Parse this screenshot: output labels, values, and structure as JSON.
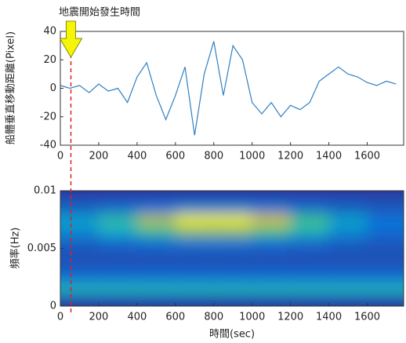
{
  "chart_data": [
    {
      "type": "line",
      "annotation": "地震開始發生時間",
      "event_time": 55,
      "ylabel": "船體垂直移動距離(Pixel)",
      "x": [
        0,
        50,
        100,
        150,
        200,
        250,
        300,
        350,
        400,
        450,
        500,
        550,
        600,
        650,
        700,
        750,
        800,
        850,
        900,
        950,
        1000,
        1050,
        1100,
        1150,
        1200,
        1250,
        1300,
        1350,
        1400,
        1450,
        1500,
        1550,
        1600,
        1650,
        1700,
        1750
      ],
      "series": [
        {
          "color": "#2f7fc1",
          "values": [
            2,
            0,
            2,
            -3,
            3,
            -2,
            0,
            -10,
            8,
            18,
            -5,
            -22,
            -5,
            15,
            -33,
            10,
            33,
            -5,
            30,
            20,
            -10,
            -18,
            -10,
            -20,
            -12,
            -15,
            -10,
            5,
            10,
            15,
            10,
            8,
            4,
            2,
            5,
            3
          ]
        }
      ],
      "xlim": [
        0,
        1790
      ],
      "xticks": [
        0,
        200,
        400,
        600,
        800,
        1000,
        1200,
        1400,
        1600
      ],
      "ylim": [
        -40,
        40
      ],
      "yticks": [
        -40,
        -20,
        0,
        20,
        40
      ]
    },
    {
      "type": "heatmap",
      "xlabel": "時間(sec)",
      "ylabel": "頻率(Hz)",
      "x": [
        100,
        300,
        500,
        700,
        900,
        1100,
        1300,
        1500,
        1700
      ],
      "y": [
        0.0005,
        0.0015,
        0.0025,
        0.0035,
        0.0045,
        0.0055,
        0.0065,
        0.0075,
        0.0085,
        0.0095
      ],
      "z": [
        [
          0.12,
          0.12,
          0.12,
          0.12,
          0.12,
          0.12,
          0.12,
          0.12,
          0.12
        ],
        [
          0.45,
          0.45,
          0.45,
          0.45,
          0.45,
          0.45,
          0.45,
          0.45,
          0.45
        ],
        [
          0.2,
          0.2,
          0.2,
          0.2,
          0.2,
          0.2,
          0.2,
          0.2,
          0.2
        ],
        [
          0.12,
          0.12,
          0.12,
          0.12,
          0.12,
          0.12,
          0.12,
          0.12,
          0.12
        ],
        [
          0.12,
          0.12,
          0.12,
          0.12,
          0.12,
          0.12,
          0.12,
          0.12,
          0.12
        ],
        [
          0.15,
          0.18,
          0.2,
          0.22,
          0.22,
          0.2,
          0.18,
          0.15,
          0.13
        ],
        [
          0.3,
          0.4,
          0.55,
          0.7,
          0.7,
          0.6,
          0.45,
          0.3,
          0.2
        ],
        [
          0.35,
          0.5,
          0.75,
          0.95,
          0.95,
          0.8,
          0.55,
          0.35,
          0.22
        ],
        [
          0.15,
          0.18,
          0.2,
          0.25,
          0.25,
          0.22,
          0.18,
          0.15,
          0.13
        ],
        [
          0.1,
          0.1,
          0.1,
          0.1,
          0.1,
          0.1,
          0.1,
          0.1,
          0.1
        ]
      ],
      "colormap": [
        "#352a87",
        "#0f6ed8",
        "#12b0c7",
        "#4fc47a",
        "#d1bb3e",
        "#f9fb0e"
      ],
      "xlim": [
        0,
        1790
      ],
      "xticks": [
        0,
        200,
        400,
        600,
        800,
        1000,
        1200,
        1400,
        1600
      ],
      "ylim": [
        0,
        0.01
      ],
      "yticks": [
        0,
        0.005,
        0.01
      ]
    }
  ]
}
